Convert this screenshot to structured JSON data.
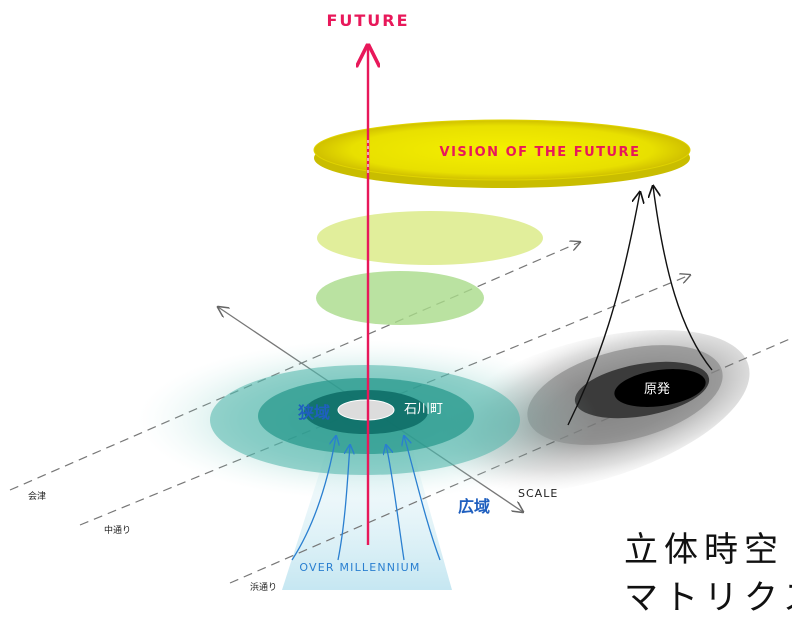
{
  "labels": {
    "future": "FUTURE",
    "vision": "VISION OF THE FUTURE",
    "narrow": "狭域",
    "wide": "広域",
    "town": "石川町",
    "nuclear": "原発",
    "scale": "SCALE",
    "over": "OVER MILLENNIUM",
    "aizu": "会津",
    "nakadori": "中通り",
    "hamadori": "浜通り"
  },
  "title": {
    "line1": "立体時空",
    "line2": "マトリクス"
  },
  "colors": {
    "future_axis": "#e8185a",
    "vision_disc": "#f0e000",
    "teal": "#1a8f86",
    "blue_text": "#1f5fbf",
    "cyan_arrow": "#2a7fd0"
  }
}
